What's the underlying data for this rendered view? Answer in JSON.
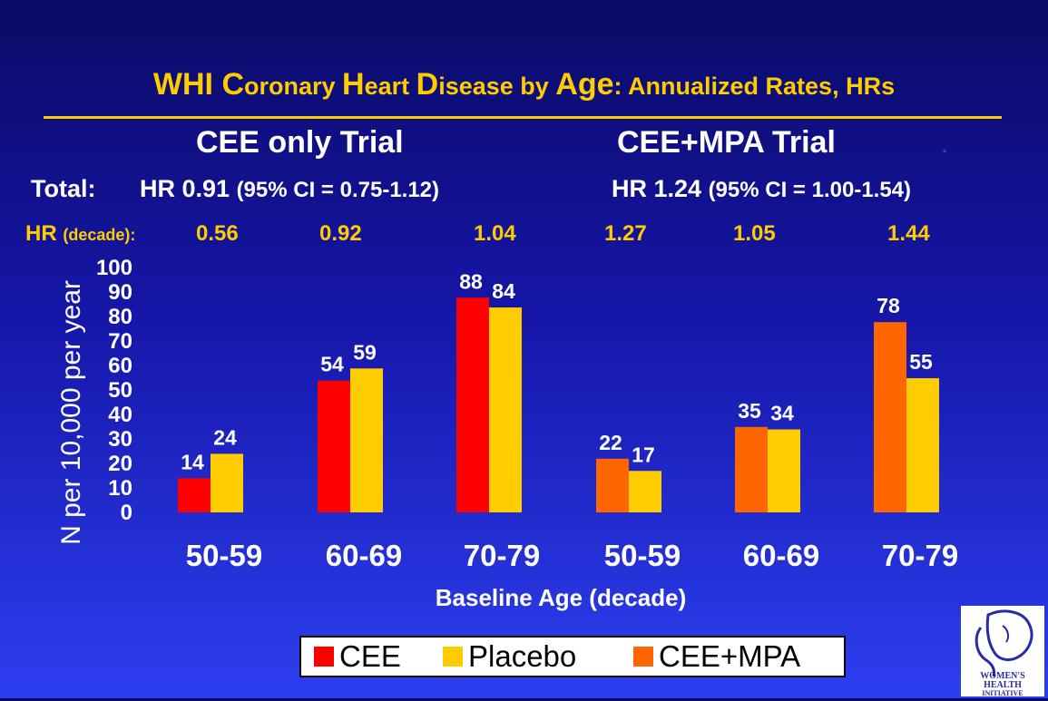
{
  "header": {
    "title_parts": [
      "WHI C",
      "oronary ",
      "H",
      "eart ",
      "D",
      "isease by ",
      "Age",
      ": Annualized Rates, HRs"
    ],
    "trial_left": "CEE only Trial",
    "trial_right": "CEE+MPA Trial",
    "trial_dot": ".",
    "total_label": "Total:",
    "total_left_hr": "HR 0.91 ",
    "total_left_ci": "(95% CI = 0.75-1.12)",
    "total_right_hr": "HR 1.24 ",
    "total_right_ci": "(95% CI = 1.00-1.54)",
    "hr_label": "HR ",
    "hr_label_sub": "(decade):",
    "hr_values": [
      "0.56",
      "0.92",
      "1.04",
      "1.27",
      "1.05",
      "1.44"
    ]
  },
  "legend": {
    "items": [
      {
        "label": "CEE",
        "color": "#ff0000"
      },
      {
        "label": "Placebo",
        "color": "#ffcc00"
      },
      {
        "label": "CEE+MPA",
        "color": "#ff6600"
      }
    ]
  },
  "colors": {
    "cee": "#ff0000",
    "placebo": "#ffcc00",
    "cee_mpa": "#ff6600",
    "accent": "#ffcc00",
    "text": "#ffffff"
  },
  "chart_data": {
    "type": "bar",
    "title": "WHI Coronary Heart Disease by Age: Annualized Rates, HRs",
    "ylabel": "N per 10,000 per year",
    "xlabel": "Baseline Age (decade)",
    "ylim": [
      0,
      100
    ],
    "yticks": [
      "100",
      "90",
      "80",
      "70",
      "60",
      "50",
      "40",
      "30",
      "20",
      "10",
      "0"
    ],
    "categories": [
      "50-59",
      "60-69",
      "70-79",
      "50-59",
      "60-69",
      "70-79"
    ],
    "series": [
      {
        "name": "CEE",
        "values": [
          14,
          54,
          88,
          null,
          null,
          null
        ]
      },
      {
        "name": "Placebo",
        "values": [
          24,
          59,
          84,
          17,
          34,
          55
        ]
      },
      {
        "name": "CEE+MPA",
        "values": [
          null,
          null,
          null,
          22,
          35,
          78
        ]
      }
    ],
    "grid": false,
    "legend": "bottom"
  }
}
